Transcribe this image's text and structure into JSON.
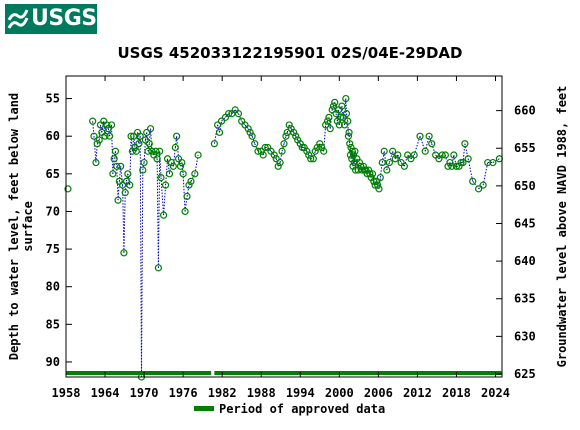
{
  "header": {
    "logo_text": "USGS",
    "logo_color": "#007a5e"
  },
  "chart_data": {
    "type": "scatter",
    "title": "USGS 452033122195901 02S/04E-29DAD",
    "ylabel": "Depth to water level, feet below land surface",
    "ylabel_lines": [
      "Depth to water level, feet below land",
      "surface"
    ],
    "y2label": "Groundwater level above NAVD 1988, feet",
    "xlim": [
      1958,
      2025
    ],
    "ylim": [
      92,
      52
    ],
    "y2lim": [
      624.6,
      664.6
    ],
    "xticks": [
      1958,
      1964,
      1970,
      1976,
      1982,
      1988,
      1994,
      2000,
      2006,
      2012,
      2018,
      2024
    ],
    "yticks": [
      55,
      60,
      65,
      70,
      75,
      80,
      85,
      90
    ],
    "y2ticks": [
      625,
      630,
      635,
      640,
      645,
      650,
      655,
      660
    ],
    "legend": {
      "label": "Period of approved data",
      "position": "bottom"
    },
    "series_color": "#008000",
    "points": [
      [
        1958.3,
        67.0
      ],
      [
        1962.1,
        58.0
      ],
      [
        1962.3,
        60.0
      ],
      [
        1962.6,
        63.5
      ],
      [
        1962.8,
        61.0
      ],
      [
        1963.1,
        60.5
      ],
      [
        1963.3,
        58.5
      ],
      [
        1963.5,
        59.5
      ],
      [
        1963.8,
        58.0
      ],
      [
        1964.0,
        60.0
      ],
      [
        1964.3,
        58.5
      ],
      [
        1964.5,
        59.0
      ],
      [
        1964.7,
        60.0
      ],
      [
        1965.0,
        58.5
      ],
      [
        1965.2,
        65.0
      ],
      [
        1965.4,
        63.0
      ],
      [
        1965.6,
        62.0
      ],
      [
        1965.8,
        64.0
      ],
      [
        1966.0,
        68.5
      ],
      [
        1966.2,
        66.0
      ],
      [
        1966.4,
        64.0
      ],
      [
        1966.7,
        66.5
      ],
      [
        1966.9,
        75.5
      ],
      [
        1967.1,
        67.5
      ],
      [
        1967.3,
        66.0
      ],
      [
        1967.5,
        65.0
      ],
      [
        1967.8,
        66.5
      ],
      [
        1968.0,
        60.0
      ],
      [
        1968.2,
        62.0
      ],
      [
        1968.4,
        60.0
      ],
      [
        1968.6,
        61.5
      ],
      [
        1968.8,
        62.0
      ],
      [
        1969.0,
        59.5
      ],
      [
        1969.2,
        61.0
      ],
      [
        1969.4,
        60.0
      ],
      [
        1969.6,
        92.0
      ],
      [
        1969.8,
        64.5
      ],
      [
        1970.0,
        63.5
      ],
      [
        1970.2,
        60.5
      ],
      [
        1970.4,
        59.5
      ],
      [
        1970.6,
        62.0
      ],
      [
        1970.8,
        61.0
      ],
      [
        1971.0,
        59.0
      ],
      [
        1971.2,
        62.0
      ],
      [
        1971.5,
        62.5
      ],
      [
        1971.8,
        62.0
      ],
      [
        1972.0,
        63.0
      ],
      [
        1972.2,
        77.5
      ],
      [
        1972.4,
        62.0
      ],
      [
        1972.6,
        65.5
      ],
      [
        1973.0,
        70.5
      ],
      [
        1973.3,
        66.5
      ],
      [
        1973.6,
        63.0
      ],
      [
        1973.9,
        65.0
      ],
      [
        1974.2,
        63.5
      ],
      [
        1974.5,
        64.0
      ],
      [
        1974.8,
        61.5
      ],
      [
        1975.0,
        60.0
      ],
      [
        1975.3,
        63.0
      ],
      [
        1975.6,
        64.0
      ],
      [
        1975.8,
        63.5
      ],
      [
        1976.0,
        65.0
      ],
      [
        1976.3,
        70.0
      ],
      [
        1976.6,
        68.0
      ],
      [
        1976.9,
        66.5
      ],
      [
        1977.2,
        66.0
      ],
      [
        1977.8,
        65.0
      ],
      [
        1978.3,
        62.5
      ],
      [
        1980.8,
        61.0
      ],
      [
        1981.3,
        58.5
      ],
      [
        1981.6,
        59.5
      ],
      [
        1981.9,
        58.0
      ],
      [
        1982.5,
        57.5
      ],
      [
        1983.0,
        57.0
      ],
      [
        1983.5,
        57.0
      ],
      [
        1984.0,
        56.5
      ],
      [
        1984.5,
        57.0
      ],
      [
        1985.0,
        58.0
      ],
      [
        1985.5,
        58.5
      ],
      [
        1986.0,
        59.0
      ],
      [
        1986.3,
        59.5
      ],
      [
        1986.6,
        60.0
      ],
      [
        1987.0,
        61.0
      ],
      [
        1987.5,
        62.0
      ],
      [
        1988.0,
        62.0
      ],
      [
        1988.3,
        62.5
      ],
      [
        1988.6,
        61.5
      ],
      [
        1989.0,
        61.5
      ],
      [
        1989.5,
        62.0
      ],
      [
        1990.0,
        62.5
      ],
      [
        1990.3,
        63.0
      ],
      [
        1990.6,
        64.0
      ],
      [
        1990.9,
        63.5
      ],
      [
        1991.2,
        62.0
      ],
      [
        1991.5,
        61.0
      ],
      [
        1991.8,
        60.0
      ],
      [
        1992.0,
        59.5
      ],
      [
        1992.3,
        58.5
      ],
      [
        1992.6,
        59.0
      ],
      [
        1993.0,
        59.5
      ],
      [
        1993.3,
        60.0
      ],
      [
        1993.6,
        60.5
      ],
      [
        1994.0,
        61.0
      ],
      [
        1994.3,
        61.5
      ],
      [
        1994.6,
        61.5
      ],
      [
        1995.0,
        62.0
      ],
      [
        1995.3,
        62.5
      ],
      [
        1995.6,
        63.0
      ],
      [
        1996.0,
        63.0
      ],
      [
        1996.3,
        62.0
      ],
      [
        1996.6,
        61.5
      ],
      [
        1997.0,
        61.0
      ],
      [
        1997.3,
        61.5
      ],
      [
        1997.6,
        62.0
      ],
      [
        1997.9,
        58.5
      ],
      [
        1998.2,
        58.0
      ],
      [
        1998.4,
        57.5
      ],
      [
        1998.6,
        59.0
      ],
      [
        1998.9,
        56.5
      ],
      [
        1999.1,
        56.0
      ],
      [
        1999.3,
        55.5
      ],
      [
        1999.5,
        57.0
      ],
      [
        1999.7,
        58.0
      ],
      [
        1999.9,
        56.5
      ],
      [
        2000.0,
        58.5
      ],
      [
        2000.2,
        57.5
      ],
      [
        2000.4,
        56.0
      ],
      [
        2000.6,
        57.5
      ],
      [
        2000.8,
        58.5
      ],
      [
        2001.0,
        55.0
      ],
      [
        2001.1,
        57.0
      ],
      [
        2001.3,
        58.0
      ],
      [
        2001.4,
        60.0
      ],
      [
        2001.5,
        59.5
      ],
      [
        2001.6,
        61.0
      ],
      [
        2001.7,
        62.5
      ],
      [
        2001.8,
        61.5
      ],
      [
        2001.9,
        63.0
      ],
      [
        2002.0,
        62.0
      ],
      [
        2002.1,
        64.0
      ],
      [
        2002.2,
        62.5
      ],
      [
        2002.3,
        63.5
      ],
      [
        2002.4,
        62.0
      ],
      [
        2002.5,
        64.5
      ],
      [
        2002.7,
        63.0
      ],
      [
        2002.9,
        64.5
      ],
      [
        2003.1,
        63.5
      ],
      [
        2003.3,
        64.0
      ],
      [
        2003.5,
        64.5
      ],
      [
        2003.7,
        64.0
      ],
      [
        2003.9,
        64.5
      ],
      [
        2004.1,
        64.5
      ],
      [
        2004.3,
        65.0
      ],
      [
        2004.5,
        64.5
      ],
      [
        2004.7,
        65.0
      ],
      [
        2004.9,
        65.5
      ],
      [
        2005.1,
        65.0
      ],
      [
        2005.3,
        66.0
      ],
      [
        2005.5,
        66.5
      ],
      [
        2005.7,
        66.0
      ],
      [
        2005.9,
        66.5
      ],
      [
        2006.1,
        67.0
      ],
      [
        2006.3,
        65.5
      ],
      [
        2006.6,
        63.5
      ],
      [
        2006.9,
        62.0
      ],
      [
        2007.3,
        64.5
      ],
      [
        2007.7,
        63.5
      ],
      [
        2008.2,
        62.0
      ],
      [
        2008.6,
        63.0
      ],
      [
        2009.0,
        62.5
      ],
      [
        2009.5,
        63.5
      ],
      [
        2010.0,
        64.0
      ],
      [
        2010.5,
        62.5
      ],
      [
        2011.0,
        63.0
      ],
      [
        2011.5,
        62.5
      ],
      [
        2012.4,
        60.0
      ],
      [
        2013.2,
        62.0
      ],
      [
        2013.8,
        60.0
      ],
      [
        2014.2,
        61.0
      ],
      [
        2014.8,
        62.5
      ],
      [
        2015.3,
        63.0
      ],
      [
        2015.8,
        62.5
      ],
      [
        2016.3,
        62.5
      ],
      [
        2016.7,
        64.0
      ],
      [
        2017.0,
        63.5
      ],
      [
        2017.3,
        64.0
      ],
      [
        2017.6,
        62.5
      ],
      [
        2018.0,
        64.0
      ],
      [
        2018.4,
        64.0
      ],
      [
        2018.7,
        63.5
      ],
      [
        2019.0,
        63.5
      ],
      [
        2019.3,
        61.0
      ],
      [
        2019.8,
        63.0
      ],
      [
        2020.5,
        66.0
      ],
      [
        2021.4,
        67.0
      ],
      [
        2022.1,
        66.5
      ],
      [
        2022.8,
        63.5
      ],
      [
        2023.6,
        63.5
      ],
      [
        2024.6,
        63.0
      ]
    ],
    "approved_periods": [
      [
        1958.0,
        1980.3
      ],
      [
        1980.8,
        2024.9
      ]
    ]
  }
}
